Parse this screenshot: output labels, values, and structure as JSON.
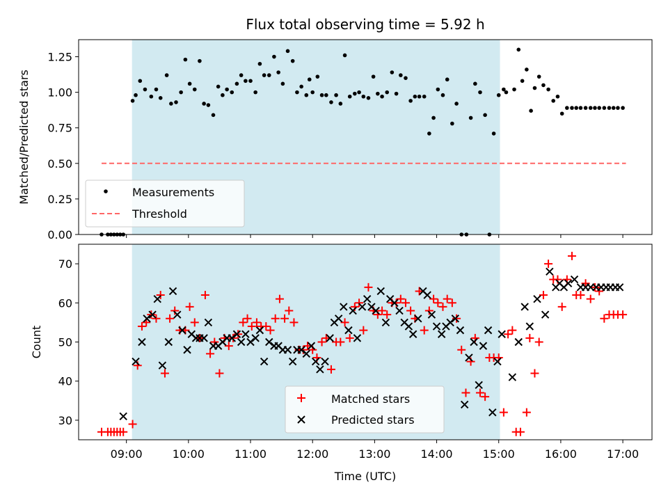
{
  "title": "Flux total observing time = 5.92 h",
  "xlabel": "Time (UTC)",
  "xticks": [
    {
      "label": "09:00",
      "hour": 9
    },
    {
      "label": "10:00",
      "hour": 10
    },
    {
      "label": "11:00",
      "hour": 11
    },
    {
      "label": "12:00",
      "hour": 12
    },
    {
      "label": "13:00",
      "hour": 13
    },
    {
      "label": "14:00",
      "hour": 14
    },
    {
      "label": "15:00",
      "hour": 15
    },
    {
      "label": "16:00",
      "hour": 16
    },
    {
      "label": "17:00",
      "hour": 17
    }
  ],
  "xlim_hours": [
    8.23,
    17.47
  ],
  "shaded_interval_hours": [
    9.09,
    15.02
  ],
  "colors": {
    "shade": "#add8e6",
    "measurement": "#000000",
    "threshold": "#ff6666",
    "matched": "#ff0000",
    "predicted": "#000000"
  },
  "chart_data": [
    {
      "type": "scatter",
      "ylabel": "Matched/Predicted stars",
      "ylim": [
        0.0,
        1.37
      ],
      "yticks": [
        "0.00",
        "0.25",
        "0.50",
        "0.75",
        "1.00",
        "1.25"
      ],
      "threshold": {
        "name": "Threshold",
        "value": 0.5,
        "x_range": [
          8.6,
          17.05
        ]
      },
      "legend": [
        "Measurements",
        "Threshold"
      ],
      "series": [
        {
          "name": "Measurements",
          "x": [
            8.6,
            8.7,
            8.75,
            8.8,
            8.85,
            8.9,
            8.95,
            9.1,
            9.15,
            9.22,
            9.3,
            9.4,
            9.48,
            9.55,
            9.65,
            9.72,
            9.8,
            9.88,
            9.95,
            10.02,
            10.1,
            10.18,
            10.25,
            10.32,
            10.4,
            10.48,
            10.55,
            10.62,
            10.7,
            10.78,
            10.85,
            10.92,
            11.0,
            11.08,
            11.15,
            11.22,
            11.3,
            11.38,
            11.45,
            11.52,
            11.6,
            11.68,
            11.75,
            11.82,
            11.9,
            11.95,
            12.0,
            12.08,
            12.15,
            12.22,
            12.3,
            12.38,
            12.45,
            12.52,
            12.6,
            12.68,
            12.75,
            12.82,
            12.9,
            12.98,
            13.05,
            13.12,
            13.2,
            13.28,
            13.35,
            13.42,
            13.5,
            13.58,
            13.65,
            13.72,
            13.8,
            13.88,
            13.95,
            14.02,
            14.1,
            14.17,
            14.25,
            14.32,
            14.4,
            14.48,
            14.55,
            14.62,
            14.7,
            14.78,
            14.85,
            14.92,
            15.0,
            15.08,
            15.12,
            15.25,
            15.32,
            15.38,
            15.45,
            15.52,
            15.58,
            15.65,
            15.72,
            15.8,
            15.88,
            15.95,
            16.02,
            16.1,
            16.18,
            16.25,
            16.32,
            16.4,
            16.48,
            16.55,
            16.62,
            16.7,
            16.78,
            16.85,
            16.92,
            17.0
          ],
          "y": [
            0.0,
            0.0,
            0.0,
            0.0,
            0.0,
            0.0,
            0.0,
            0.94,
            0.98,
            1.08,
            1.02,
            0.97,
            1.02,
            0.96,
            1.12,
            0.92,
            0.93,
            1.0,
            1.23,
            1.06,
            1.02,
            1.22,
            0.92,
            0.91,
            0.84,
            1.04,
            0.98,
            1.02,
            1.0,
            1.06,
            1.12,
            1.08,
            1.08,
            1.0,
            1.2,
            1.12,
            1.12,
            1.25,
            1.14,
            1.06,
            1.29,
            1.22,
            1.0,
            1.04,
            0.98,
            1.09,
            1.0,
            1.11,
            0.98,
            0.98,
            0.93,
            0.98,
            0.92,
            1.26,
            0.97,
            0.99,
            1.0,
            0.97,
            0.96,
            1.11,
            0.99,
            0.97,
            1.0,
            1.14,
            0.99,
            1.12,
            1.1,
            0.94,
            0.97,
            0.97,
            0.97,
            0.71,
            0.82,
            1.02,
            0.98,
            1.09,
            0.78,
            0.92,
            0.0,
            0.0,
            0.82,
            1.06,
            1.0,
            0.84,
            0.0,
            0.71,
            0.98,
            1.02,
            1.0,
            1.02,
            1.3,
            1.08,
            1.16,
            0.87,
            1.03,
            1.11,
            1.05,
            1.02,
            0.94,
            0.97,
            0.85,
            0.89,
            0.89,
            0.89,
            0.89,
            0.89,
            0.89,
            0.89,
            0.89,
            0.89,
            0.89,
            0.89,
            0.89,
            0.89
          ]
        }
      ]
    },
    {
      "type": "scatter",
      "ylabel": "Count",
      "ylim": [
        25.0,
        75.0
      ],
      "yticks": [
        "30",
        "40",
        "50",
        "60",
        "70"
      ],
      "legend": [
        "Matched stars",
        "Predicted stars"
      ],
      "series": [
        {
          "name": "Matched stars",
          "x": [
            8.6,
            8.7,
            8.75,
            8.8,
            8.85,
            8.9,
            8.95,
            9.1,
            9.18,
            9.25,
            9.32,
            9.4,
            9.48,
            9.55,
            9.62,
            9.7,
            9.78,
            9.86,
            9.95,
            10.02,
            10.1,
            10.18,
            10.27,
            10.35,
            10.42,
            10.5,
            10.58,
            10.65,
            10.72,
            10.8,
            10.88,
            10.95,
            11.02,
            11.1,
            11.17,
            11.25,
            11.32,
            11.4,
            11.47,
            11.55,
            11.62,
            11.7,
            11.78,
            11.85,
            11.92,
            12.0,
            12.07,
            12.15,
            12.22,
            12.3,
            12.38,
            12.45,
            12.52,
            12.6,
            12.68,
            12.75,
            12.82,
            12.9,
            12.98,
            13.05,
            13.12,
            13.2,
            13.28,
            13.35,
            13.42,
            13.5,
            13.58,
            13.65,
            13.72,
            13.8,
            13.88,
            13.95,
            14.02,
            14.1,
            14.17,
            14.25,
            14.32,
            14.4,
            14.47,
            14.55,
            14.62,
            14.7,
            14.78,
            14.85,
            14.92,
            15.0,
            15.08,
            15.15,
            15.22,
            15.28,
            15.35,
            15.45,
            15.5,
            15.58,
            15.65,
            15.72,
            15.8,
            15.88,
            15.95,
            16.02,
            16.1,
            16.18,
            16.25,
            16.32,
            16.4,
            16.48,
            16.55,
            16.62,
            16.7,
            16.78,
            16.85,
            16.92,
            17.0
          ],
          "y": [
            27,
            27,
            27,
            27,
            27,
            27,
            27,
            29,
            44,
            54,
            55,
            57,
            56,
            62,
            42,
            56,
            58,
            53,
            53,
            59,
            55,
            51,
            62,
            47,
            50,
            42,
            51,
            49,
            51,
            52,
            55,
            56,
            54,
            55,
            54,
            54,
            53,
            56,
            61,
            56,
            58,
            55,
            48,
            48,
            49,
            48,
            46,
            50,
            51,
            43,
            50,
            50,
            55,
            51,
            59,
            60,
            53,
            64,
            58,
            57,
            58,
            57,
            60,
            60,
            61,
            60,
            58,
            56,
            63,
            53,
            58,
            61,
            60,
            59,
            61,
            60,
            56,
            48,
            37,
            45,
            51,
            37,
            36,
            46,
            46,
            46,
            32,
            52,
            53,
            27,
            27,
            32,
            51,
            42,
            50,
            62,
            70,
            66,
            66,
            59,
            66,
            72,
            62,
            62,
            65,
            61,
            64,
            63,
            56,
            57,
            57,
            57,
            57
          ]
        },
        {
          "name": "Predicted stars",
          "x": [
            8.95,
            9.15,
            9.25,
            9.33,
            9.42,
            9.5,
            9.58,
            9.68,
            9.75,
            9.82,
            9.9,
            9.98,
            10.05,
            10.12,
            10.18,
            10.25,
            10.32,
            10.4,
            10.48,
            10.55,
            10.62,
            10.7,
            10.78,
            10.85,
            10.92,
            11.0,
            11.08,
            11.15,
            11.22,
            11.3,
            11.38,
            11.45,
            11.52,
            11.6,
            11.68,
            11.75,
            11.82,
            11.9,
            11.98,
            12.05,
            12.12,
            12.2,
            12.28,
            12.35,
            12.42,
            12.5,
            12.58,
            12.65,
            12.72,
            12.8,
            12.88,
            12.95,
            13.02,
            13.1,
            13.18,
            13.25,
            13.32,
            13.4,
            13.48,
            13.55,
            13.62,
            13.7,
            13.78,
            13.85,
            13.92,
            14.0,
            14.08,
            14.15,
            14.22,
            14.3,
            14.38,
            14.45,
            14.52,
            14.6,
            14.68,
            14.75,
            14.83,
            14.9,
            14.98,
            15.05,
            15.22,
            15.32,
            15.42,
            15.5,
            15.62,
            15.75,
            15.82,
            15.92,
            15.98,
            16.05,
            16.12,
            16.22,
            16.32,
            16.4,
            16.48,
            16.57,
            16.65,
            16.73,
            16.8,
            16.88,
            16.95
          ],
          "y": [
            31,
            45,
            50,
            56,
            57,
            61,
            44,
            50,
            63,
            57,
            53,
            48,
            52,
            51,
            51,
            51,
            55,
            49,
            49,
            50,
            51,
            51,
            52,
            50,
            52,
            50,
            51,
            53,
            45,
            50,
            49,
            49,
            48,
            48,
            45,
            48,
            48,
            47,
            49,
            45,
            43,
            45,
            51,
            55,
            56,
            59,
            53,
            58,
            51,
            59,
            61,
            59,
            58,
            63,
            55,
            61,
            60,
            58,
            55,
            54,
            52,
            56,
            63,
            62,
            57,
            54,
            52,
            54,
            55,
            56,
            53,
            34,
            46,
            50,
            39,
            49,
            53,
            32,
            45,
            52,
            41,
            50,
            59,
            54,
            61,
            57,
            68,
            64,
            65,
            64,
            65,
            66,
            64,
            64,
            64,
            64,
            64,
            64,
            64,
            64,
            64
          ]
        }
      ]
    }
  ]
}
